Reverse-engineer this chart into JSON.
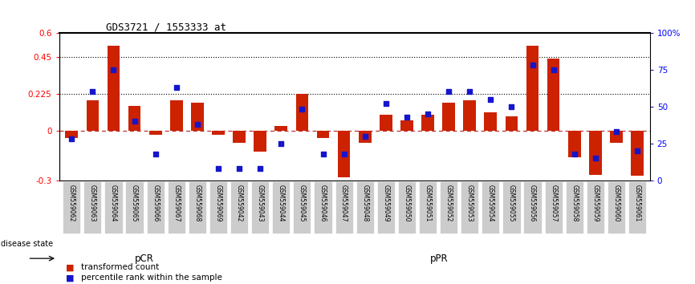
{
  "title": "GDS3721 / 1553333_at",
  "samples": [
    "GSM559062",
    "GSM559063",
    "GSM559064",
    "GSM559065",
    "GSM559066",
    "GSM559067",
    "GSM559068",
    "GSM559069",
    "GSM559042",
    "GSM559043",
    "GSM559044",
    "GSM559045",
    "GSM559046",
    "GSM559047",
    "GSM559048",
    "GSM559049",
    "GSM559050",
    "GSM559051",
    "GSM559052",
    "GSM559053",
    "GSM559054",
    "GSM559055",
    "GSM559056",
    "GSM559057",
    "GSM559058",
    "GSM559059",
    "GSM559060",
    "GSM559061"
  ],
  "red_bars": [
    -0.04,
    0.19,
    0.52,
    0.155,
    -0.02,
    0.19,
    0.175,
    -0.02,
    -0.07,
    -0.125,
    0.03,
    0.225,
    -0.04,
    -0.28,
    -0.07,
    0.1,
    0.065,
    0.1,
    0.175,
    0.19,
    0.115,
    0.09,
    0.52,
    0.44,
    -0.16,
    -0.265,
    -0.07,
    -0.27
  ],
  "blue_dots_pct": [
    28,
    60,
    75,
    40,
    18,
    63,
    38,
    8,
    8,
    8,
    25,
    48,
    18,
    18,
    30,
    52,
    43,
    45,
    60,
    60,
    55,
    50,
    78,
    75,
    18,
    15,
    33,
    20
  ],
  "pcr_count": 8,
  "ylim_left": [
    -0.3,
    0.6
  ],
  "ylim_right": [
    0,
    100
  ],
  "yticks_left": [
    -0.3,
    0.0,
    0.225,
    0.45,
    0.6
  ],
  "ytick_labels_left": [
    "-0.3",
    "0",
    "0.225",
    "0.45",
    "0.6"
  ],
  "yticks_right": [
    0,
    25,
    50,
    75,
    100
  ],
  "ytick_labels_right": [
    "0",
    "25",
    "50",
    "75",
    "100%"
  ],
  "hlines": [
    0.225,
    0.45
  ],
  "pcr_color": "#ADEBA3",
  "ppr_color": "#4DC940",
  "bar_color": "#CC2200",
  "dot_color": "#1515CC",
  "zero_line_color": "#BB3333",
  "label_bg": "#CCCCCC"
}
